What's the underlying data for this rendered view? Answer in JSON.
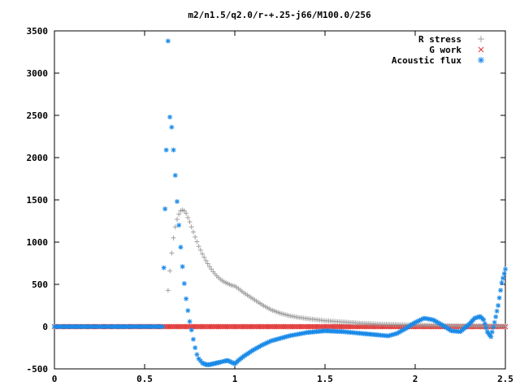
{
  "chart_data": {
    "type": "scatter",
    "title": "m2/n1.5/q2.0/r-+.25-j66/M100.0/256",
    "xlabel": "",
    "ylabel": "",
    "xlim": [
      0,
      2.5
    ],
    "ylim": [
      -500,
      3500
    ],
    "xticks": [
      0,
      0.5,
      1,
      1.5,
      2,
      2.5
    ],
    "xtick_labels": [
      "0",
      "0.5",
      "1",
      "1.5",
      "2",
      "2.5"
    ],
    "yticks": [
      -500,
      0,
      500,
      1000,
      1500,
      2000,
      2500,
      3000,
      3500
    ],
    "ytick_labels": [
      "-500",
      "0",
      "500",
      "1000",
      "1500",
      "2000",
      "2500",
      "3000",
      "3500"
    ],
    "grid": false,
    "legend_position": "top-right",
    "series": [
      {
        "name": "R stress",
        "marker": "+",
        "color": "#a0a0a0",
        "x": [
          0.63,
          0.64,
          0.65,
          0.66,
          0.67,
          0.68,
          0.69,
          0.7,
          0.71,
          0.72,
          0.73,
          0.74,
          0.75,
          0.76,
          0.77,
          0.78,
          0.8,
          0.82,
          0.84,
          0.86,
          0.88,
          0.9,
          0.92,
          0.94,
          0.96,
          0.98,
          1.0,
          1.02,
          1.05,
          1.1,
          1.15,
          1.2,
          1.25,
          1.3,
          1.35,
          1.4,
          1.5,
          1.6,
          1.7,
          1.8,
          1.9,
          2.0,
          2.1,
          2.2,
          2.3,
          2.4,
          2.5
        ],
        "y": [
          430,
          660,
          870,
          1050,
          1180,
          1270,
          1330,
          1370,
          1380,
          1370,
          1340,
          1290,
          1240,
          1180,
          1120,
          1060,
          950,
          860,
          780,
          710,
          650,
          600,
          560,
          530,
          510,
          490,
          480,
          450,
          400,
          330,
          260,
          200,
          160,
          130,
          110,
          95,
          70,
          55,
          40,
          30,
          25,
          20,
          15,
          12,
          10,
          8,
          5
        ]
      },
      {
        "name": "G work",
        "marker": "x",
        "color": "#e03030",
        "x_range": [
          0.0,
          2.5
        ],
        "value": 0
      },
      {
        "name": "Acoustic flux",
        "marker": "*",
        "color": "#1a8ae8",
        "x": [
          0.0,
          0.1,
          0.2,
          0.3,
          0.4,
          0.5,
          0.6,
          0.62,
          0.63,
          0.64,
          0.65,
          0.66,
          0.67,
          0.68,
          0.69,
          0.7,
          0.71,
          0.72,
          0.73,
          0.74,
          0.75,
          0.76,
          0.77,
          0.78,
          0.79,
          0.8,
          0.82,
          0.84,
          0.86,
          0.88,
          0.9,
          0.92,
          0.94,
          0.96,
          0.98,
          1.0,
          1.02,
          1.05,
          1.1,
          1.15,
          1.2,
          1.3,
          1.4,
          1.5,
          1.6,
          1.7,
          1.8,
          1.85,
          1.9,
          1.95,
          2.0,
          2.05,
          2.1,
          2.15,
          2.2,
          2.25,
          2.3,
          2.33,
          2.36,
          2.38,
          2.4,
          2.42,
          2.44,
          2.46,
          2.48,
          2.5
        ],
        "y": [
          0,
          0,
          0,
          0,
          0,
          0,
          0,
          2090,
          3380,
          2480,
          2360,
          2090,
          1790,
          1480,
          1200,
          940,
          710,
          510,
          330,
          190,
          60,
          -40,
          -150,
          -250,
          -330,
          -380,
          -430,
          -450,
          -450,
          -440,
          -430,
          -420,
          -410,
          -400,
          -420,
          -440,
          -400,
          -350,
          -280,
          -220,
          -170,
          -110,
          -70,
          -50,
          -60,
          -80,
          -100,
          -110,
          -80,
          -20,
          50,
          100,
          80,
          20,
          -50,
          -60,
          30,
          100,
          120,
          80,
          -60,
          -120,
          50,
          250,
          520,
          680
        ]
      }
    ]
  }
}
